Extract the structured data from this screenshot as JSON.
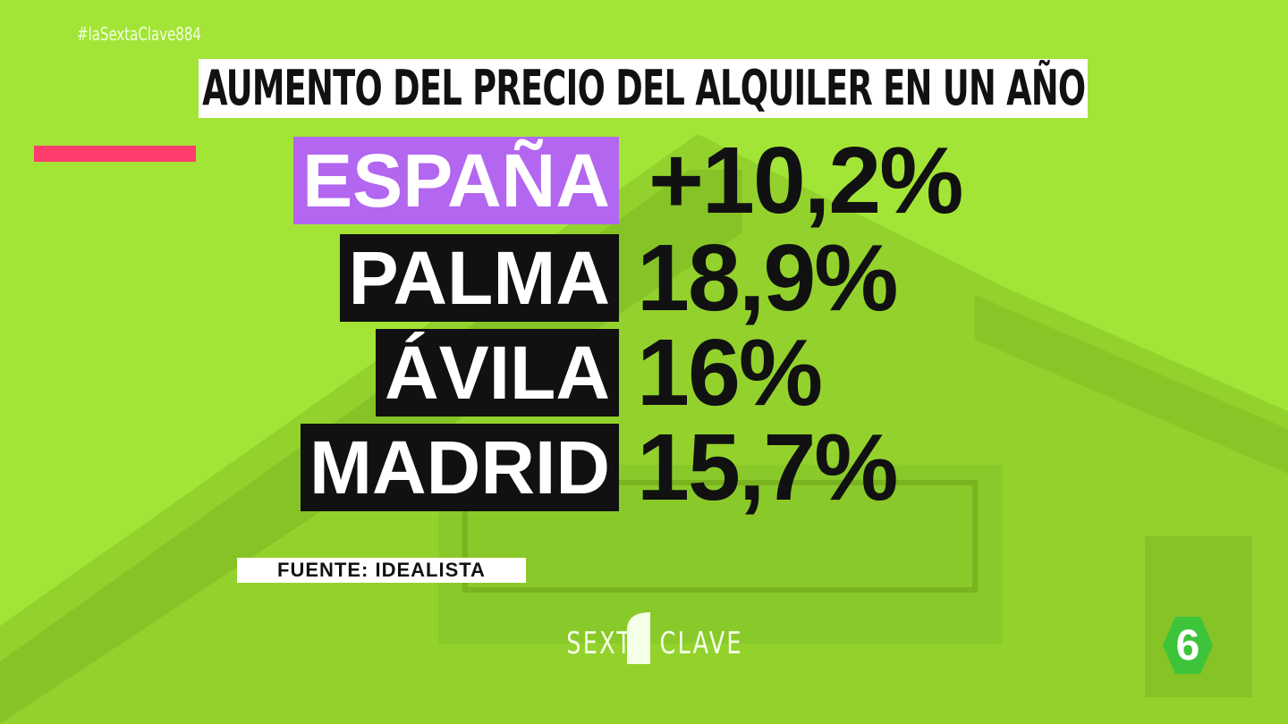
{
  "hashtag": "#laSextaClave884",
  "title": "AUMENTO DEL PRECIO DEL ALQUILER EN UN AÑO",
  "rows": [
    {
      "label": "ESPAÑA",
      "value": "+10,2%"
    },
    {
      "label": "PALMA",
      "value": "18,9%"
    },
    {
      "label": "ÁVILA",
      "value": "16%"
    },
    {
      "label": "MADRID",
      "value": "15,7%"
    }
  ],
  "source": "FUENTE: IDEALISTA",
  "logo": {
    "left": "SEXTA",
    "right": "CLAVE",
    "channel": "6"
  }
}
